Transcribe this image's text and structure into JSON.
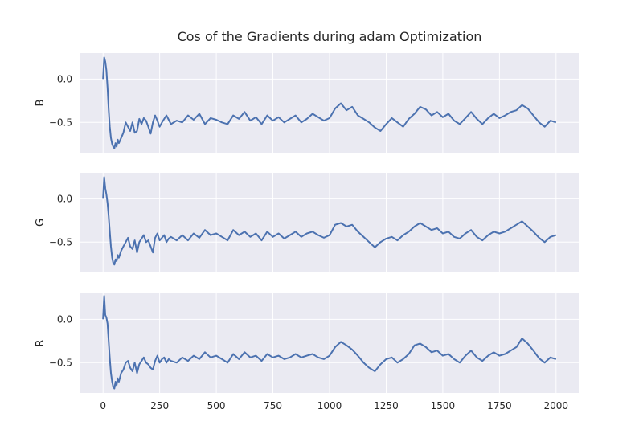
{
  "chart_data": {
    "type": "line",
    "title": "Cos of the Gradients during adam Optimization",
    "xlabel": "",
    "xlim": [
      -100,
      2100
    ],
    "xticks": [
      0,
      250,
      500,
      750,
      1000,
      1250,
      1500,
      1750,
      2000
    ],
    "grid": true,
    "colors": {
      "line": "#4c72b0",
      "panel_bg": "#eaeaf2",
      "grid": "#ffffff"
    },
    "panels": [
      {
        "ylabel": "B",
        "ylim": [
          -0.85,
          0.3
        ],
        "yticks": [
          0.0,
          -0.5
        ],
        "series": [
          {
            "x": [
              0,
              5,
              10,
              15,
              20,
              25,
              30,
              35,
              40,
              45,
              50,
              55,
              60,
              65,
              70,
              80,
              90,
              100,
              110,
              120,
              130,
              140,
              150,
              160,
              170,
              180,
              190,
              200,
              210,
              220,
              230,
              240,
              250,
              260,
              270,
              280,
              290,
              300,
              325,
              350,
              375,
              400,
              425,
              450,
              475,
              500,
              525,
              550,
              575,
              600,
              625,
              650,
              675,
              700,
              725,
              750,
              775,
              800,
              825,
              850,
              875,
              900,
              925,
              950,
              975,
              1000,
              1025,
              1050,
              1075,
              1100,
              1125,
              1150,
              1175,
              1200,
              1225,
              1250,
              1275,
              1300,
              1325,
              1350,
              1375,
              1400,
              1425,
              1450,
              1475,
              1500,
              1525,
              1550,
              1575,
              1600,
              1625,
              1650,
              1675,
              1700,
              1725,
              1750,
              1775,
              1800,
              1825,
              1850,
              1875,
              1900,
              1925,
              1950,
              1975,
              2000
            ],
            "y": [
              0.0,
              0.25,
              0.2,
              0.1,
              -0.1,
              -0.35,
              -0.55,
              -0.68,
              -0.75,
              -0.78,
              -0.8,
              -0.74,
              -0.78,
              -0.7,
              -0.74,
              -0.68,
              -0.62,
              -0.5,
              -0.55,
              -0.6,
              -0.5,
              -0.62,
              -0.6,
              -0.46,
              -0.52,
              -0.45,
              -0.48,
              -0.55,
              -0.63,
              -0.5,
              -0.42,
              -0.48,
              -0.55,
              -0.5,
              -0.46,
              -0.42,
              -0.47,
              -0.52,
              -0.48,
              -0.5,
              -0.42,
              -0.47,
              -0.4,
              -0.52,
              -0.45,
              -0.47,
              -0.5,
              -0.52,
              -0.42,
              -0.46,
              -0.38,
              -0.48,
              -0.44,
              -0.52,
              -0.42,
              -0.48,
              -0.44,
              -0.5,
              -0.46,
              -0.42,
              -0.5,
              -0.46,
              -0.4,
              -0.44,
              -0.48,
              -0.45,
              -0.34,
              -0.28,
              -0.36,
              -0.32,
              -0.42,
              -0.46,
              -0.5,
              -0.56,
              -0.6,
              -0.52,
              -0.45,
              -0.5,
              -0.55,
              -0.46,
              -0.4,
              -0.32,
              -0.35,
              -0.42,
              -0.38,
              -0.44,
              -0.4,
              -0.48,
              -0.52,
              -0.45,
              -0.38,
              -0.46,
              -0.52,
              -0.45,
              -0.4,
              -0.45,
              -0.42,
              -0.38,
              -0.36,
              -0.3,
              -0.34,
              -0.42,
              -0.5,
              -0.55,
              -0.48,
              -0.5
            ]
          }
        ]
      },
      {
        "ylabel": "G",
        "ylim": [
          -0.85,
          0.3
        ],
        "yticks": [
          0.0,
          -0.5
        ],
        "series": [
          {
            "x": [
              0,
              5,
              10,
              15,
              20,
              25,
              30,
              35,
              40,
              45,
              50,
              55,
              60,
              65,
              70,
              80,
              90,
              100,
              110,
              120,
              130,
              140,
              150,
              160,
              170,
              180,
              190,
              200,
              210,
              220,
              230,
              240,
              250,
              260,
              270,
              280,
              290,
              300,
              325,
              350,
              375,
              400,
              425,
              450,
              475,
              500,
              525,
              550,
              575,
              600,
              625,
              650,
              675,
              700,
              725,
              750,
              775,
              800,
              825,
              850,
              875,
              900,
              925,
              950,
              975,
              1000,
              1025,
              1050,
              1075,
              1100,
              1125,
              1150,
              1175,
              1200,
              1225,
              1250,
              1275,
              1300,
              1325,
              1350,
              1375,
              1400,
              1425,
              1450,
              1475,
              1500,
              1525,
              1550,
              1575,
              1600,
              1625,
              1650,
              1675,
              1700,
              1725,
              1750,
              1775,
              1800,
              1825,
              1850,
              1875,
              1900,
              1925,
              1950,
              1975,
              2000
            ],
            "y": [
              0.0,
              0.25,
              0.12,
              0.05,
              -0.05,
              -0.2,
              -0.38,
              -0.55,
              -0.68,
              -0.74,
              -0.76,
              -0.7,
              -0.72,
              -0.65,
              -0.68,
              -0.6,
              -0.55,
              -0.5,
              -0.45,
              -0.55,
              -0.58,
              -0.48,
              -0.62,
              -0.5,
              -0.46,
              -0.42,
              -0.5,
              -0.48,
              -0.55,
              -0.62,
              -0.45,
              -0.4,
              -0.48,
              -0.45,
              -0.42,
              -0.5,
              -0.46,
              -0.44,
              -0.48,
              -0.42,
              -0.48,
              -0.4,
              -0.45,
              -0.36,
              -0.42,
              -0.4,
              -0.44,
              -0.48,
              -0.36,
              -0.42,
              -0.38,
              -0.44,
              -0.4,
              -0.48,
              -0.38,
              -0.44,
              -0.4,
              -0.46,
              -0.42,
              -0.38,
              -0.44,
              -0.4,
              -0.38,
              -0.42,
              -0.45,
              -0.42,
              -0.3,
              -0.28,
              -0.32,
              -0.3,
              -0.38,
              -0.44,
              -0.5,
              -0.56,
              -0.5,
              -0.46,
              -0.44,
              -0.48,
              -0.42,
              -0.38,
              -0.32,
              -0.28,
              -0.32,
              -0.36,
              -0.34,
              -0.4,
              -0.38,
              -0.44,
              -0.46,
              -0.4,
              -0.36,
              -0.44,
              -0.48,
              -0.42,
              -0.38,
              -0.4,
              -0.38,
              -0.34,
              -0.3,
              -0.26,
              -0.32,
              -0.38,
              -0.45,
              -0.5,
              -0.44,
              -0.42
            ]
          }
        ]
      },
      {
        "ylabel": "R",
        "ylim": [
          -0.85,
          0.3
        ],
        "yticks": [
          0.0,
          -0.5
        ],
        "series": [
          {
            "x": [
              0,
              5,
              10,
              15,
              20,
              25,
              30,
              35,
              40,
              45,
              50,
              55,
              60,
              65,
              70,
              80,
              90,
              100,
              110,
              120,
              130,
              140,
              150,
              160,
              170,
              180,
              190,
              200,
              210,
              220,
              230,
              240,
              250,
              260,
              270,
              280,
              290,
              300,
              325,
              350,
              375,
              400,
              425,
              450,
              475,
              500,
              525,
              550,
              575,
              600,
              625,
              650,
              675,
              700,
              725,
              750,
              775,
              800,
              825,
              850,
              875,
              900,
              925,
              950,
              975,
              1000,
              1025,
              1050,
              1075,
              1100,
              1125,
              1150,
              1175,
              1200,
              1225,
              1250,
              1275,
              1300,
              1325,
              1350,
              1375,
              1400,
              1425,
              1450,
              1475,
              1500,
              1525,
              1550,
              1575,
              1600,
              1625,
              1650,
              1675,
              1700,
              1725,
              1750,
              1775,
              1800,
              1825,
              1850,
              1875,
              1900,
              1925,
              1950,
              1975,
              2000
            ],
            "y": [
              0.0,
              0.27,
              0.05,
              0.02,
              -0.05,
              -0.25,
              -0.45,
              -0.62,
              -0.72,
              -0.78,
              -0.8,
              -0.72,
              -0.76,
              -0.68,
              -0.72,
              -0.62,
              -0.58,
              -0.5,
              -0.48,
              -0.56,
              -0.6,
              -0.5,
              -0.62,
              -0.52,
              -0.48,
              -0.44,
              -0.5,
              -0.52,
              -0.56,
              -0.58,
              -0.48,
              -0.42,
              -0.5,
              -0.46,
              -0.44,
              -0.5,
              -0.46,
              -0.48,
              -0.5,
              -0.44,
              -0.48,
              -0.42,
              -0.46,
              -0.38,
              -0.44,
              -0.42,
              -0.46,
              -0.5,
              -0.4,
              -0.46,
              -0.38,
              -0.44,
              -0.42,
              -0.48,
              -0.4,
              -0.44,
              -0.42,
              -0.46,
              -0.44,
              -0.4,
              -0.44,
              -0.42,
              -0.4,
              -0.44,
              -0.46,
              -0.42,
              -0.32,
              -0.26,
              -0.3,
              -0.35,
              -0.42,
              -0.5,
              -0.56,
              -0.6,
              -0.52,
              -0.46,
              -0.44,
              -0.5,
              -0.46,
              -0.4,
              -0.3,
              -0.28,
              -0.32,
              -0.38,
              -0.36,
              -0.42,
              -0.4,
              -0.46,
              -0.5,
              -0.42,
              -0.36,
              -0.44,
              -0.48,
              -0.42,
              -0.38,
              -0.42,
              -0.4,
              -0.36,
              -0.32,
              -0.22,
              -0.28,
              -0.36,
              -0.45,
              -0.5,
              -0.44,
              -0.46
            ]
          }
        ]
      }
    ]
  }
}
